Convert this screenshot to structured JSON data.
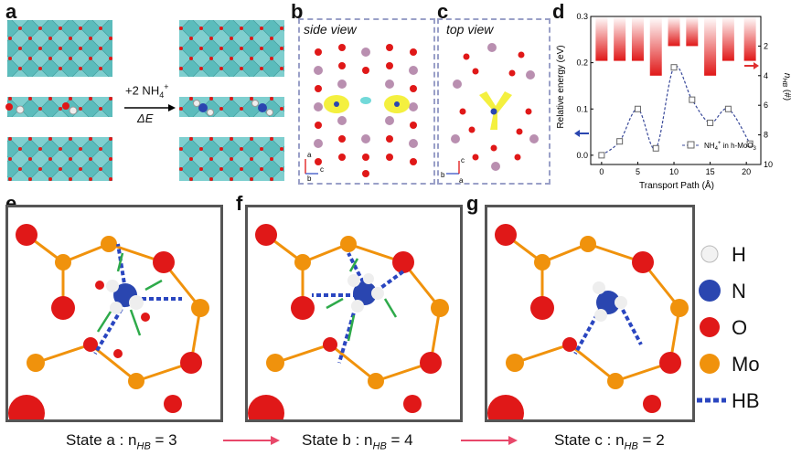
{
  "panels": {
    "a": {
      "label": "a",
      "reaction_top": "+2 NH",
      "reaction_top_sub": "4",
      "reaction_top_sup": "+",
      "reaction_bottom": "ΔE"
    },
    "b": {
      "label": "b",
      "view": "side view"
    },
    "c": {
      "label": "c",
      "view": "top view"
    },
    "d": {
      "label": "d"
    },
    "e": {
      "label": "e",
      "caption_main": "State a : n",
      "caption_sub": "HB",
      "caption_value": " = 3"
    },
    "f": {
      "label": "f",
      "caption_main": "State b : n",
      "caption_sub": "HB",
      "caption_value": " = 4"
    },
    "g": {
      "label": "g",
      "caption_main": "State c : n",
      "caption_sub": "HB",
      "caption_value": " = 2"
    }
  },
  "legend": [
    {
      "symbol": "H",
      "color": "#f2f2f2"
    },
    {
      "symbol": "N",
      "color": "#2a46b0"
    },
    {
      "symbol": "O",
      "color": "#e01818"
    },
    {
      "symbol": "Mo",
      "color": "#f0920c"
    },
    {
      "symbol": "HB",
      "color": "#2a46c0"
    }
  ],
  "chart_data": {
    "type": "line",
    "xlabel": "Transport Path (Å)",
    "ylabel": "Relative energy (eV)",
    "y2label": "n",
    "y2label_sub": "HB",
    "y2label_suffix": " (#)",
    "xlim": [
      -1.5,
      22
    ],
    "ylim": [
      -0.02,
      0.3
    ],
    "y2lim": [
      10,
      0
    ],
    "xticks": [
      "0",
      "5",
      "10",
      "15",
      "20"
    ],
    "yticks": [
      "0.0",
      "0.1",
      "0.2",
      "0.3"
    ],
    "y2ticks": [
      "2",
      "4",
      "6",
      "8",
      "10"
    ],
    "series": [
      {
        "name": "NH4+ in h-MoO3",
        "legend_main": "NH",
        "legend_sub": "4",
        "legend_sup": "+",
        "legend_suffix": " in h-MoO",
        "legend_sub2": "3",
        "x": [
          0,
          2.5,
          5,
          7.5,
          10,
          12.5,
          15,
          17.5,
          20.5
        ],
        "y": [
          0.0,
          0.03,
          0.1,
          0.015,
          0.19,
          0.12,
          0.07,
          0.1,
          0.025
        ]
      }
    ],
    "bars": {
      "x": [
        0,
        2.5,
        5,
        7.5,
        10,
        12.5,
        15,
        17.5,
        20.5
      ],
      "n_hb": [
        3,
        3,
        3,
        4,
        2,
        2,
        4,
        3,
        3
      ]
    },
    "arrows": [
      "left arrow on left axis (blue)",
      "right arrow on right axis (red)"
    ]
  }
}
